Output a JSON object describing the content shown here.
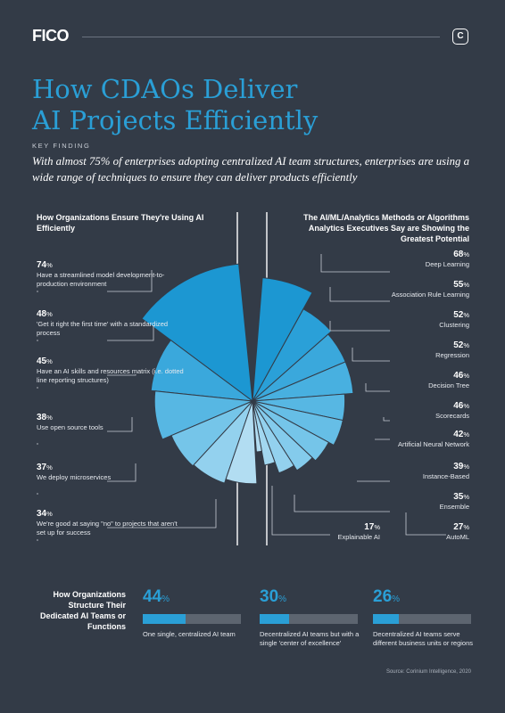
{
  "logo": "FICO",
  "corner_icon": "C",
  "title": "How CDAOs Deliver\nAI Projects Efficiently",
  "key_finding_label": "KEY FINDING",
  "key_finding_text": "With almost 75% of enterprises adopting centralized AI team structures, enterprises are using a wide range of techniques to ensure they can deliver products efficiently",
  "source": "Source: Corinium Intelligence, 2020",
  "colors": {
    "background": "#333b47",
    "accent": "#2a9fd6"
  },
  "chart_data": [
    {
      "type": "pie",
      "title": "How Organizations Ensure They're Using AI Efficiently",
      "unit": "%",
      "categories": [
        "Have a streamlined model development-to-production environment",
        "'Get it right the first time' with a standardized process",
        "Have an AI skills and resources matrix (i.e. dotted line reporting structures)",
        "Use open source tools",
        "We deploy microservices",
        "We're good at saying \"no\" to projects that aren't set up for success"
      ],
      "values": [
        74,
        48,
        45,
        38,
        37,
        34
      ]
    },
    {
      "type": "pie",
      "title": "The AI/ML/Analytics Methods or Algorithms Analytics Executives Say are Showing the Greatest Potential",
      "unit": "%",
      "categories": [
        "Deep Learning",
        "Association Rule Learning",
        "Clustering",
        "Regression",
        "Decision Tree",
        "Scorecards",
        "Artificial Neural Network",
        "Instance-Based",
        "Ensemble",
        "AutoML",
        "Explainable AI"
      ],
      "values": [
        68,
        55,
        52,
        52,
        46,
        46,
        42,
        39,
        35,
        27,
        17
      ]
    },
    {
      "type": "bar",
      "title": "How Organizations Structure Their Dedicated AI Teams or Functions",
      "unit": "%",
      "categories": [
        "One single, centralized AI team",
        "Decentralized AI teams but with a single 'center of excellence'",
        "Decentralized AI teams serve different business units or regions"
      ],
      "values": [
        44,
        30,
        26
      ],
      "ylim": [
        0,
        100
      ]
    }
  ]
}
